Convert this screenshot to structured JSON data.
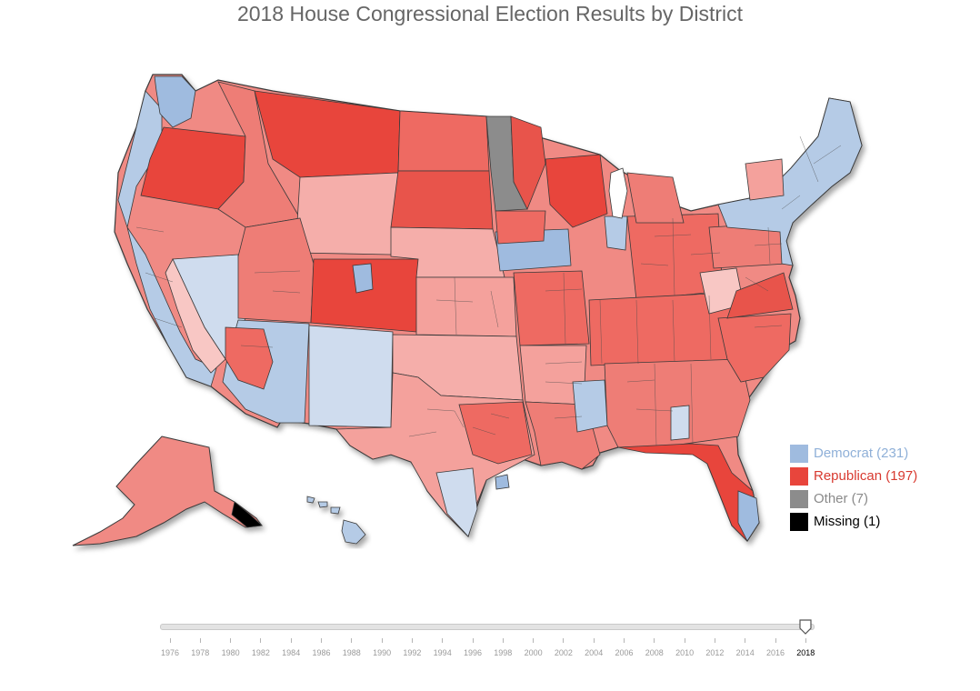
{
  "title": "2018 House Congressional Election Results by District",
  "colors": {
    "democrat": "#9fbbdf",
    "republican": "#e8453c",
    "other": "#8c8c8c",
    "missing": "#000000",
    "dem_light": "#cfdcee",
    "rep_mid": "#ee7d76",
    "rep_light": "#f5aeaa",
    "border": "#3a3a3a"
  },
  "legend": [
    {
      "key": "democrat",
      "label": "Democrat (231)",
      "color": "#9fbbdf",
      "text_color": "#8fb0d8"
    },
    {
      "key": "republican",
      "label": "Republican (197)",
      "color": "#e8453c",
      "text_color": "#d83a30"
    },
    {
      "key": "other",
      "label": "Other (7)",
      "color": "#8c8c8c",
      "text_color": "#8a8a8a"
    },
    {
      "key": "missing",
      "label": "Missing (1)",
      "color": "#000000",
      "text_color": "#000000"
    }
  ],
  "timeline": {
    "years": [
      "1976",
      "1978",
      "1980",
      "1982",
      "1984",
      "1986",
      "1988",
      "1990",
      "1992",
      "1994",
      "1996",
      "1998",
      "2000",
      "2002",
      "2004",
      "2006",
      "2008",
      "2010",
      "2012",
      "2014",
      "2016",
      "2018"
    ],
    "selected": "2018"
  }
}
